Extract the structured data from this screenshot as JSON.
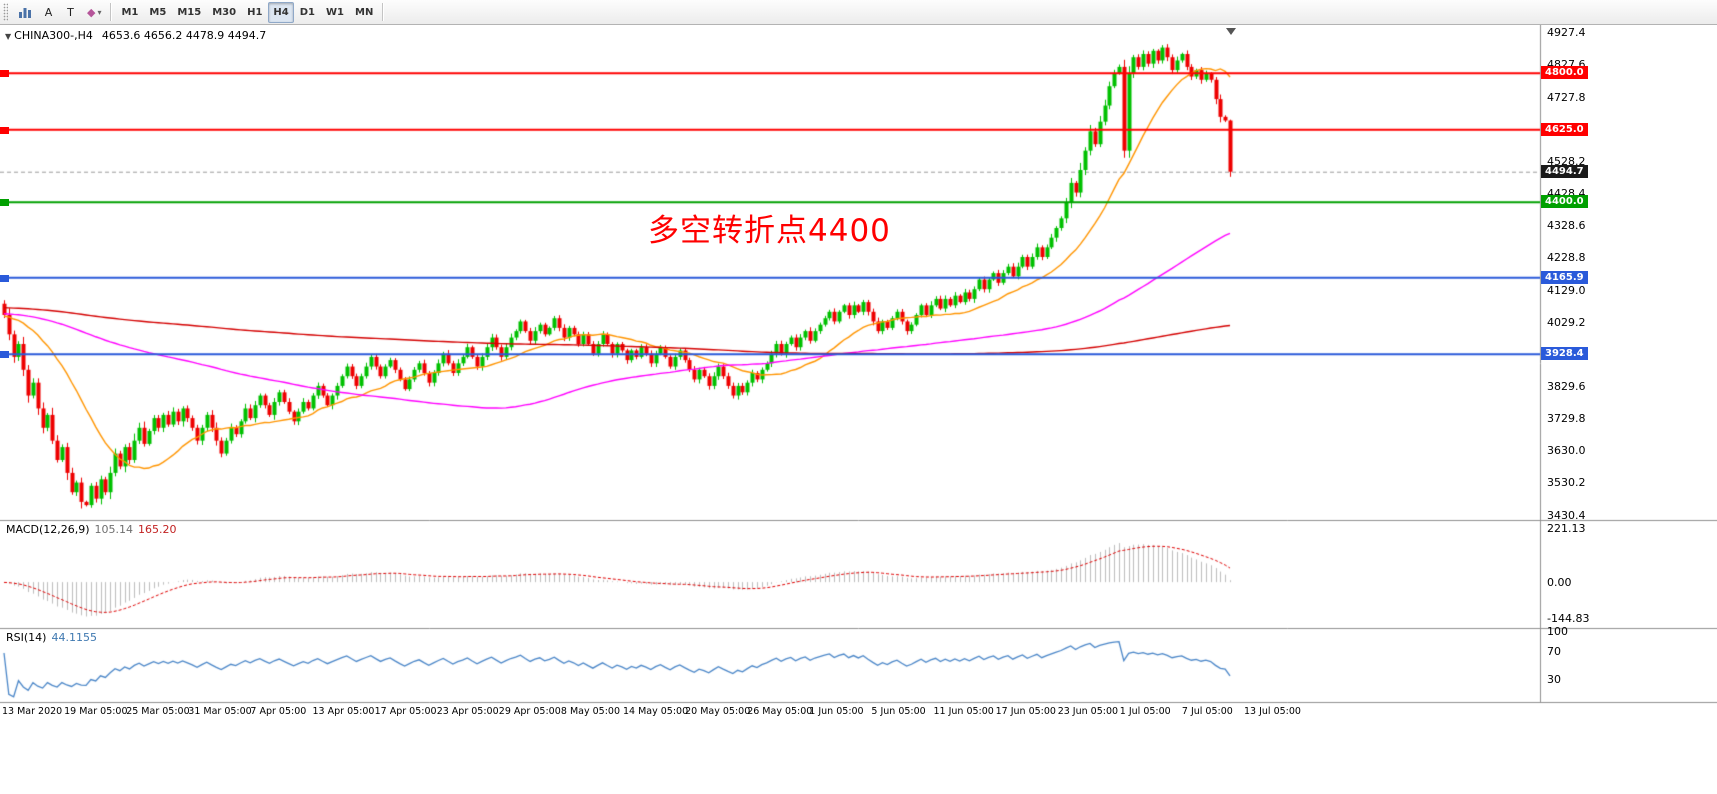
{
  "toolbar": {
    "tools": [
      {
        "name": "charts-toolbar-button",
        "icon": "bars"
      },
      {
        "name": "cursor-tool-button",
        "label": "A"
      },
      {
        "name": "text-tool-button",
        "label": "T"
      },
      {
        "name": "shapes-tool-button",
        "label": "◆",
        "caret": "▾",
        "color": "#b5559a"
      }
    ],
    "timeframes": [
      "M1",
      "M5",
      "M15",
      "M30",
      "H1",
      "H4",
      "D1",
      "W1",
      "MN"
    ],
    "active_timeframe": "H4"
  },
  "chart_header": {
    "collapse_icon": "▼",
    "symbol_period": "CHINA300-,H4",
    "ohlc_text": "4653.6 4656.2 4478.9 4494.7"
  },
  "annotation": {
    "text": "多空转折点4400",
    "color": "#FF0000"
  },
  "indicators": {
    "macd": {
      "label": "MACD(12,26,9)",
      "value_main": "105.14",
      "value_signal": "165.20",
      "axis": [
        {
          "label": "221.13",
          "value": 221.13
        },
        {
          "label": "0.00",
          "value": 0
        },
        {
          "label": "-144.83",
          "value": -144.83
        }
      ]
    },
    "rsi": {
      "label": "RSI(14)",
      "value": "44.1155",
      "axis": [
        {
          "label": "100",
          "value": 100
        },
        {
          "label": "70",
          "value": 70
        },
        {
          "label": "30",
          "value": 30
        }
      ]
    }
  },
  "chart_data": {
    "type": "candlestick",
    "symbol": "CHINA300-",
    "timeframe": "H4",
    "title": "CHINA300-,H4 4653.6 4656.2 4478.9 4494.7",
    "price_range": [
      3420,
      4950
    ],
    "y_axis_ticks": [
      4927.4,
      4827.6,
      4727.8,
      4528.2,
      4428.4,
      4328.6,
      4228.8,
      4129.0,
      4029.2,
      3829.6,
      3729.8,
      3630.0,
      3530.2,
      3430.4
    ],
    "x_labels": [
      "13 Mar 2020",
      "19 Mar 05:00",
      "25 Mar 05:00",
      "31 Mar 05:00",
      "7 Apr 05:00",
      "13 Apr 05:00",
      "17 Apr 05:00",
      "23 Apr 05:00",
      "29 Apr 05:00",
      "8 May 05:00",
      "14 May 05:00",
      "20 May 05:00",
      "26 May 05:00",
      "1 Jun 05:00",
      "5 Jun 05:00",
      "11 Jun 05:00",
      "17 Jun 05:00",
      "23 Jun 05:00",
      "1 Jul 05:00",
      "7 Jul 05:00",
      "13 Jul 05:00"
    ],
    "first_open": 4085,
    "closes": [
      4050,
      3990,
      3920,
      3960,
      3880,
      3800,
      3840,
      3760,
      3700,
      3740,
      3660,
      3600,
      3640,
      3560,
      3500,
      3530,
      3470,
      3460,
      3520,
      3480,
      3540,
      3500,
      3560,
      3620,
      3580,
      3640,
      3600,
      3660,
      3700,
      3650,
      3690,
      3730,
      3700,
      3740,
      3710,
      3750,
      3720,
      3760,
      3730,
      3700,
      3660,
      3700,
      3740,
      3700,
      3660,
      3620,
      3660,
      3700,
      3680,
      3720,
      3760,
      3730,
      3770,
      3800,
      3770,
      3740,
      3780,
      3810,
      3780,
      3750,
      3720,
      3750,
      3780,
      3760,
      3800,
      3830,
      3800,
      3770,
      3800,
      3830,
      3860,
      3890,
      3860,
      3830,
      3860,
      3890,
      3920,
      3890,
      3860,
      3890,
      3910,
      3880,
      3850,
      3820,
      3850,
      3880,
      3900,
      3870,
      3840,
      3870,
      3900,
      3930,
      3900,
      3870,
      3900,
      3920,
      3950,
      3920,
      3890,
      3920,
      3950,
      3980,
      3950,
      3920,
      3950,
      3980,
      4000,
      4030,
      4000,
      3970,
      4000,
      4020,
      3990,
      4010,
      4040,
      4010,
      3980,
      4010,
      3990,
      3960,
      3990,
      3960,
      3930,
      3960,
      3990,
      3960,
      3930,
      3960,
      3940,
      3910,
      3940,
      3920,
      3950,
      3930,
      3900,
      3930,
      3950,
      3920,
      3890,
      3920,
      3940,
      3910,
      3880,
      3850,
      3880,
      3860,
      3830,
      3860,
      3890,
      3860,
      3830,
      3800,
      3830,
      3810,
      3840,
      3870,
      3850,
      3880,
      3900,
      3930,
      3960,
      3930,
      3960,
      3980,
      3950,
      3980,
      4000,
      3970,
      4000,
      4020,
      4040,
      4060,
      4030,
      4060,
      4080,
      4050,
      4080,
      4060,
      4090,
      4060,
      4030,
      4000,
      4030,
      4010,
      4040,
      4060,
      4030,
      4000,
      4020,
      4050,
      4080,
      4050,
      4080,
      4100,
      4070,
      4100,
      4080,
      4110,
      4090,
      4120,
      4100,
      4130,
      4160,
      4130,
      4160,
      4180,
      4150,
      4180,
      4200,
      4170,
      4200,
      4230,
      4200,
      4230,
      4260,
      4230,
      4260,
      4290,
      4320,
      4350,
      4400,
      4460,
      4430,
      4500,
      4560,
      4620,
      4580,
      4650,
      4700,
      4760,
      4800,
      4820,
      4560,
      4800,
      4850,
      4820,
      4860,
      4830,
      4870,
      4840,
      4880,
      4850,
      4810,
      4840,
      4860,
      4820,
      4790,
      4810,
      4780,
      4800,
      4780,
      4720,
      4665,
      4653.6,
      4494.7
    ],
    "last_candle": {
      "open": 4653.6,
      "high": 4656.2,
      "low": 4478.9,
      "close": 4494.7
    },
    "current_price": 4494.7,
    "current_price_label": "4494.7",
    "current_price_color": "#1a1a1a",
    "levels": [
      {
        "price": 4800.0,
        "label": "4800.0",
        "color": "#FF0000"
      },
      {
        "price": 4625.0,
        "label": "4625.0",
        "color": "#FF0000"
      },
      {
        "price": 4400.0,
        "label": "4400.0",
        "color": "#00A000"
      },
      {
        "price": 4165.9,
        "label": "4165.9",
        "color": "#2A5ADA"
      },
      {
        "price": 3928.4,
        "label": "3928.4",
        "color": "#2A5ADA"
      }
    ],
    "moving_averages": [
      {
        "period": 20,
        "color": "#FF9500"
      },
      {
        "period": 100,
        "color": "#FF00FF"
      },
      {
        "period": 300,
        "color": "#D40000"
      }
    ],
    "ma_warmup": {
      "bars": 300,
      "from": 4100,
      "to": 4045
    },
    "up_color": "#00C000",
    "down_color": "#EE0000",
    "macd": {
      "fast": 12,
      "slow": 26,
      "signal": 9,
      "hist_color": "#BDBDBD",
      "signal_color": "#E00000",
      "range": [
        -170,
        240
      ]
    },
    "rsi": {
      "period": 14,
      "color": "#4A86C8",
      "range": [
        0,
        100
      ]
    },
    "seed": 42
  }
}
